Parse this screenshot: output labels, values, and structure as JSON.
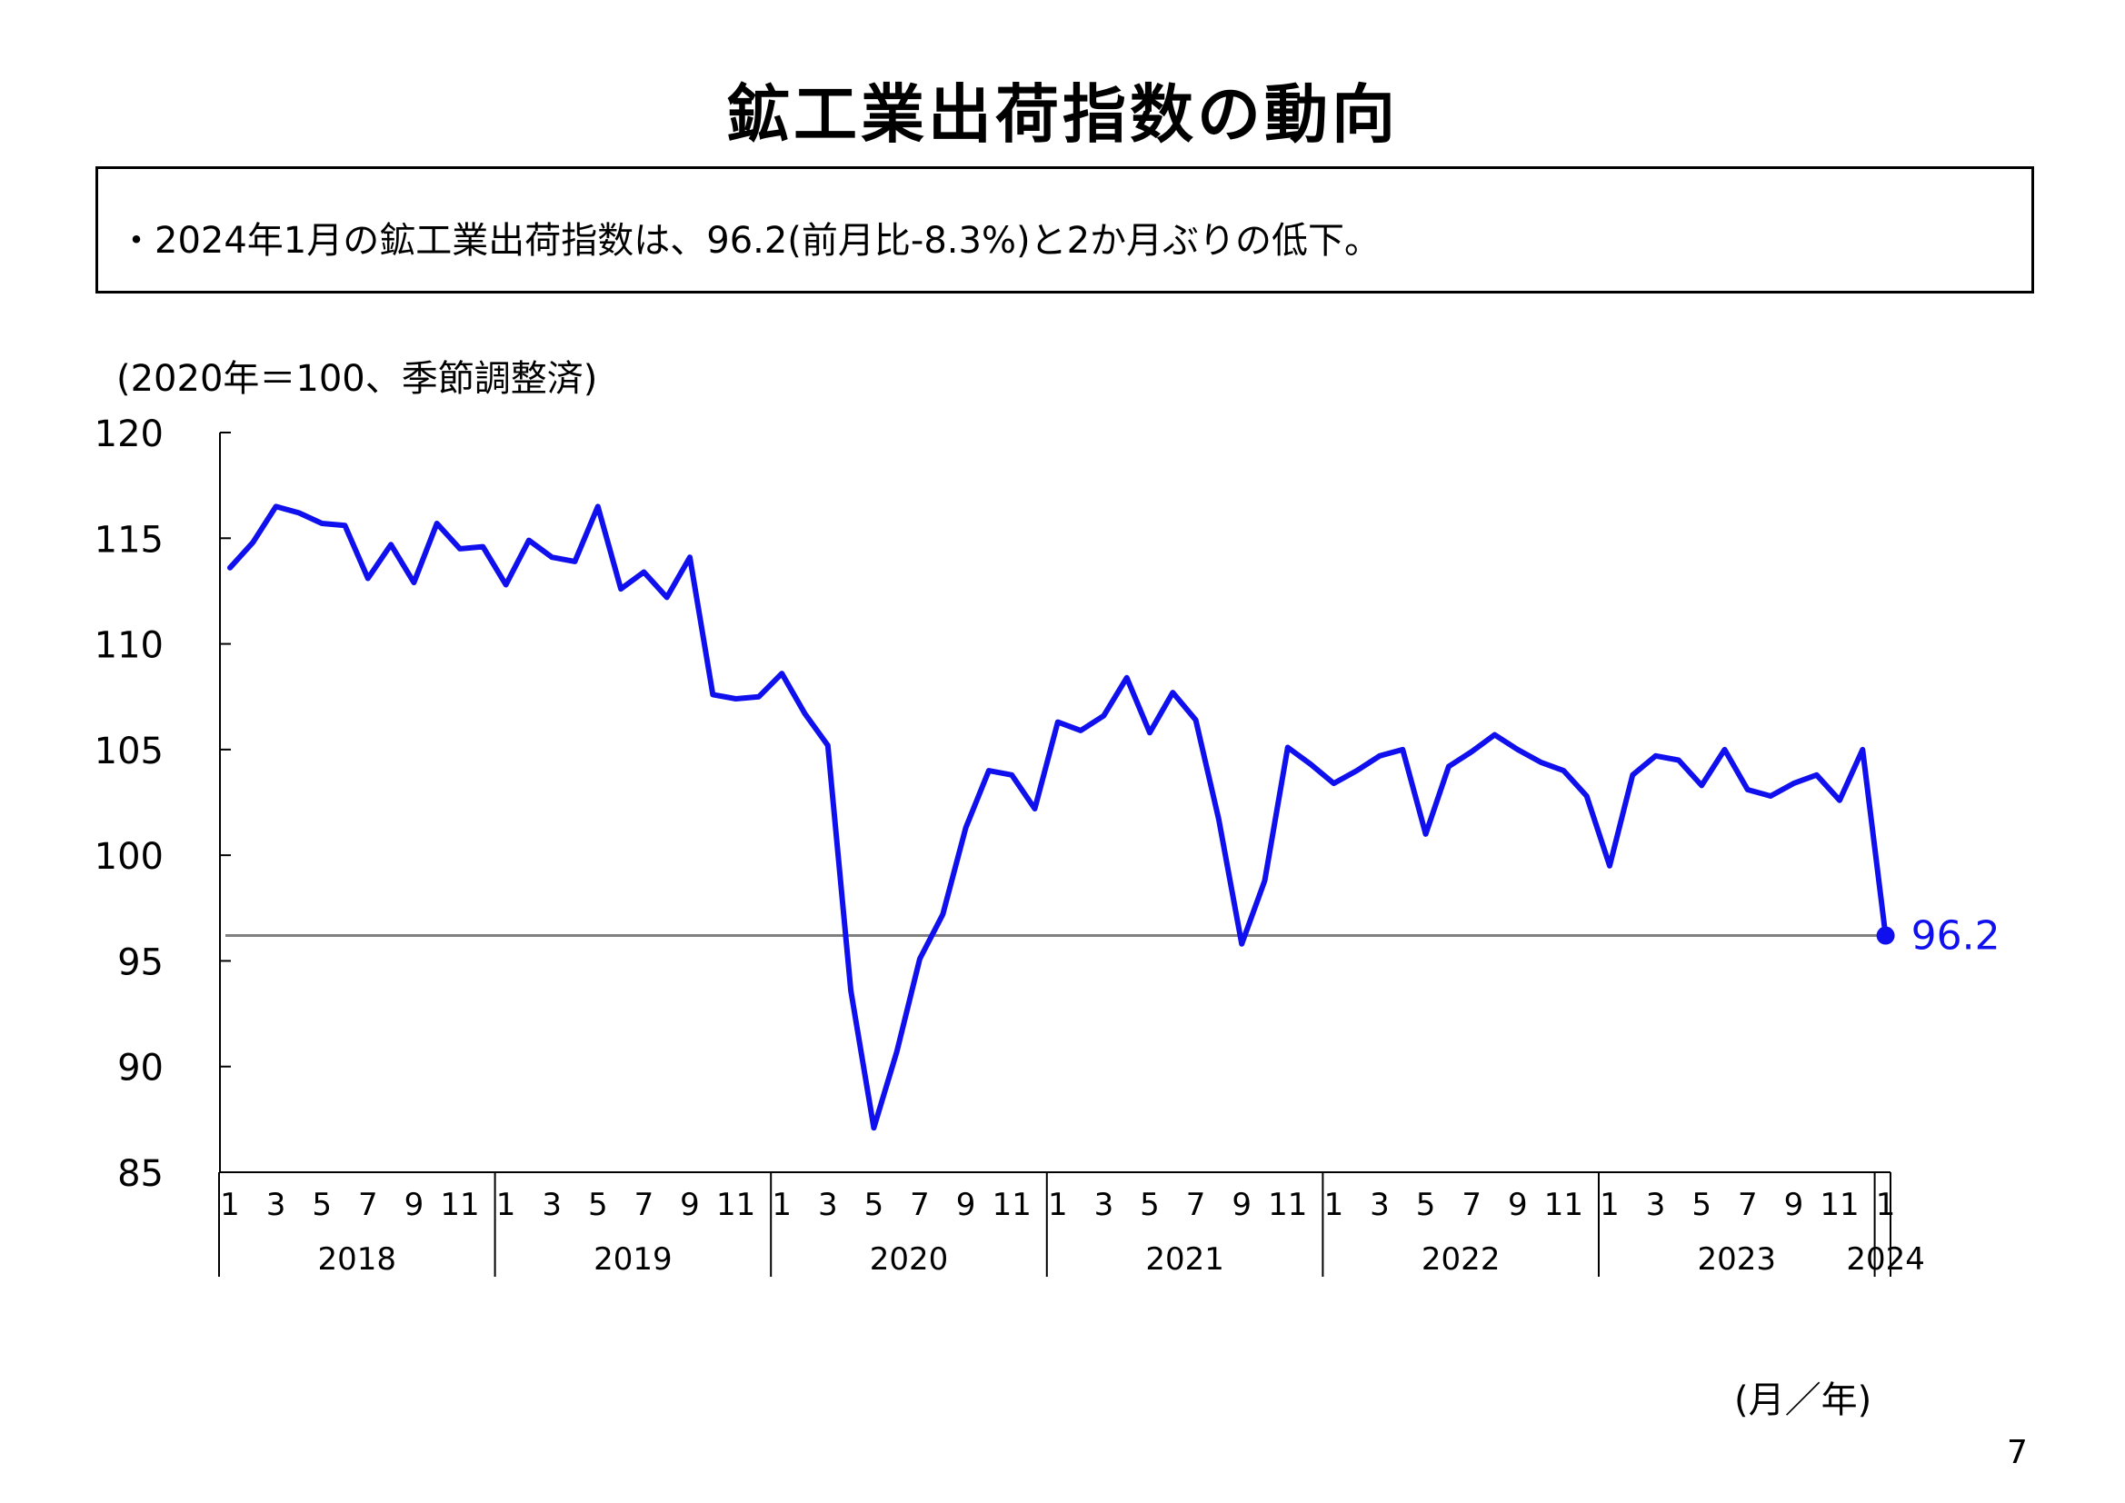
{
  "page": {
    "title": "鉱工業出荷指数の動向",
    "summary": "・2024年1月の鉱工業出荷指数は、96.2(前月比-8.3%)と2か月ぶりの低下。",
    "unit_note": "(2020年＝100、季節調整済)",
    "x_unit": "(月／年)",
    "page_number": "7"
  },
  "chart_data": {
    "type": "line",
    "ylim": [
      85,
      120
    ],
    "yticks": [
      85,
      90,
      95,
      100,
      105,
      110,
      115,
      120
    ],
    "month_labels": [
      "1",
      "3",
      "5",
      "7",
      "9",
      "11"
    ],
    "years": [
      "2018",
      "2019",
      "2020",
      "2021",
      "2022",
      "2023",
      "2024"
    ],
    "series": [
      {
        "values": [
          113.6,
          114.8,
          116.5,
          116.2,
          115.7,
          115.6,
          113.1,
          114.7,
          112.9,
          115.7,
          114.5,
          114.6,
          112.8,
          114.9,
          114.1,
          113.9,
          116.5,
          112.6,
          113.4,
          112.2,
          114.1,
          107.6,
          107.4,
          107.5,
          108.6,
          106.7,
          105.2,
          93.6,
          87.1,
          90.7,
          95.1,
          97.2,
          101.3,
          104.0,
          103.8,
          102.2,
          106.3,
          105.9,
          106.6,
          108.4,
          105.8,
          107.7,
          106.4,
          101.7,
          95.8,
          98.8,
          105.1,
          104.3,
          103.4,
          104.0,
          104.7,
          105.0,
          101.0,
          104.2,
          104.9,
          105.7,
          105.0,
          104.4,
          104.0,
          102.8,
          99.5,
          103.8,
          104.7,
          104.5,
          103.3,
          105.0,
          103.1,
          102.8,
          103.4,
          103.8,
          102.6,
          105.0,
          96.2
        ]
      }
    ],
    "reference_line": 96.2,
    "last_point_label": "96.2",
    "colors": {
      "line": "#1010ee",
      "reference": "#808080",
      "axis": "#000000"
    }
  }
}
